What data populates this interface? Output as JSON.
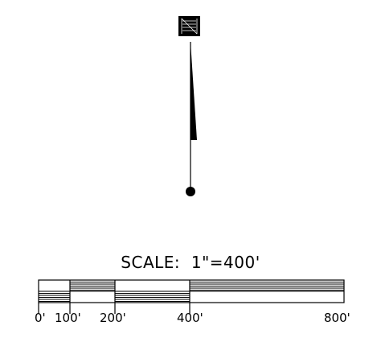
{
  "north_arrow": {
    "letter": "N"
  },
  "scale": {
    "title": "SCALE:  1\"=400'",
    "labels": [
      "0'",
      "100'",
      "200'",
      "400'",
      "800'"
    ]
  }
}
